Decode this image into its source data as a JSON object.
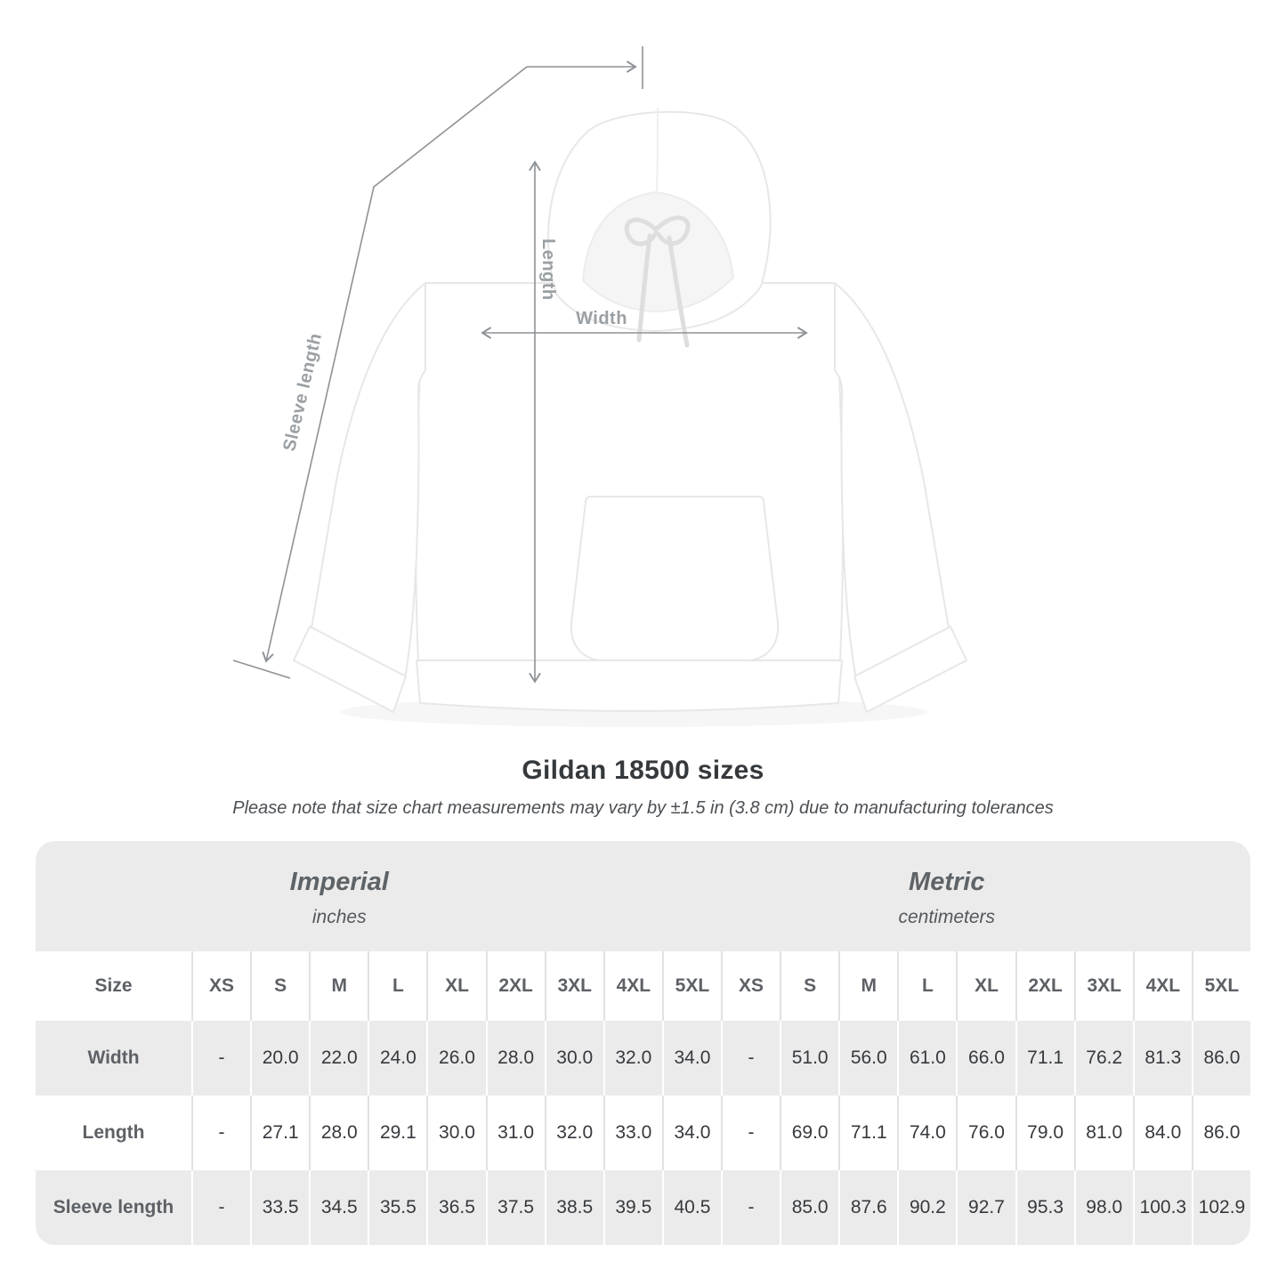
{
  "figure": {
    "labels": {
      "sleeve_length": "Sleeve length",
      "length": "Length",
      "width": "Width"
    }
  },
  "heading": {
    "title": "Gildan 18500 sizes",
    "note": "Please note that size chart measurements may vary by ±1.5 in (3.8 cm) due to manufacturing tolerances"
  },
  "size_chart": {
    "unit_groups": [
      {
        "name": "Imperial",
        "unit": "inches"
      },
      {
        "name": "Metric",
        "unit": "centimeters"
      }
    ],
    "size_label": "Size",
    "sizes": [
      "XS",
      "S",
      "M",
      "L",
      "XL",
      "2XL",
      "3XL",
      "4XL",
      "5XL"
    ],
    "rows": [
      {
        "label": "Width",
        "imperial": [
          "-",
          "20.0",
          "22.0",
          "24.0",
          "26.0",
          "28.0",
          "30.0",
          "32.0",
          "34.0"
        ],
        "metric": [
          "-",
          "51.0",
          "56.0",
          "61.0",
          "66.0",
          "71.1",
          "76.2",
          "81.3",
          "86.0"
        ]
      },
      {
        "label": "Length",
        "imperial": [
          "-",
          "27.1",
          "28.0",
          "29.1",
          "30.0",
          "31.0",
          "32.0",
          "33.0",
          "34.0"
        ],
        "metric": [
          "-",
          "69.0",
          "71.1",
          "74.0",
          "76.0",
          "79.0",
          "81.0",
          "84.0",
          "86.0"
        ]
      },
      {
        "label": "Sleeve length",
        "imperial": [
          "-",
          "33.5",
          "34.5",
          "35.5",
          "36.5",
          "37.5",
          "38.5",
          "39.5",
          "40.5"
        ],
        "metric": [
          "-",
          "85.0",
          "87.6",
          "90.2",
          "92.7",
          "95.3",
          "98.0",
          "100.3",
          "102.9"
        ]
      }
    ]
  },
  "colors": {
    "measure_line": "#8e9296",
    "measure_label": "#9aa0a4",
    "table_bg": "#ebebeb",
    "header_text": "#5d6166",
    "value_text": "#36393d"
  }
}
